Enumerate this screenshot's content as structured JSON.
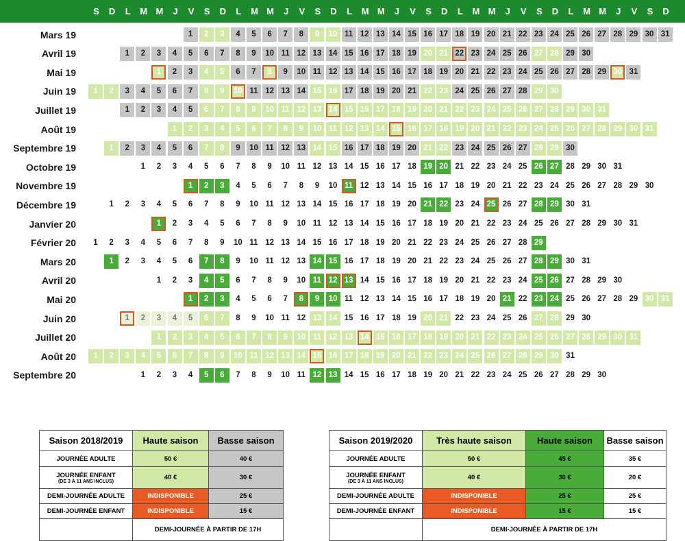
{
  "colors": {
    "header": "#1e8a2e",
    "grey": "#c6c6c6",
    "light_green": "#d2e8a6",
    "dark_green": "#4aac38",
    "orange": "#e95b25",
    "outline": "#d05a20"
  },
  "weekday_header": [
    "S",
    "D",
    "L",
    "M",
    "M",
    "J",
    "V",
    "S",
    "D",
    "L",
    "M",
    "M",
    "J",
    "V",
    "S",
    "D",
    "L",
    "M",
    "M",
    "J",
    "V",
    "S",
    "D",
    "L",
    "M",
    "M",
    "J",
    "V",
    "S",
    "D",
    "L",
    "M",
    "M",
    "J",
    "V",
    "S",
    "D"
  ],
  "months": [
    {
      "label": "Mars 19",
      "start": 6,
      "days": 31,
      "light": [
        [
          2,
          3
        ],
        [
          9,
          10
        ]
      ],
      "grey_until": 31,
      "outlined": []
    },
    {
      "label": "Avril 19",
      "start": 2,
      "days": 30,
      "light": [
        [
          20,
          21
        ],
        [
          27,
          28
        ]
      ],
      "grey_until": 30,
      "outlined": [
        22
      ]
    },
    {
      "label": "Mai 19",
      "start": 4,
      "days": 31,
      "light": [
        [
          1,
          1
        ],
        [
          4,
          5
        ],
        [
          8,
          8
        ],
        [
          30,
          30
        ]
      ],
      "grey_until": 31,
      "outlined": [
        1,
        8,
        30
      ]
    },
    {
      "label": "Juin 19",
      "start": 0,
      "days": 30,
      "light": [
        [
          1,
          2
        ],
        [
          8,
          10
        ],
        [
          15,
          16
        ],
        [
          22,
          23
        ],
        [
          29,
          30
        ]
      ],
      "grey_until": 30,
      "outlined": [
        10
      ]
    },
    {
      "label": "Juillet 19",
      "start": 2,
      "days": 31,
      "light": [
        [
          6,
          31
        ]
      ],
      "grey_until": 5,
      "outlined": [
        14
      ]
    },
    {
      "label": "Août 19",
      "start": 5,
      "days": 31,
      "light": [
        [
          1,
          31
        ]
      ],
      "grey_until": 0,
      "outlined": [
        15
      ]
    },
    {
      "label": "Septembre 19",
      "start": 1,
      "days": 30,
      "light": [
        [
          1,
          1
        ],
        [
          7,
          8
        ],
        [
          14,
          15
        ],
        [
          21,
          22
        ],
        [
          28,
          29
        ]
      ],
      "grey_until": 30,
      "outlined": []
    },
    {
      "label": "Octobre 19",
      "start": 3,
      "days": 31,
      "dark": [
        19,
        20,
        26,
        27
      ],
      "outlined": []
    },
    {
      "label": "Novembre 19",
      "start": 6,
      "days": 30,
      "dark": [
        1,
        2,
        3,
        11
      ],
      "outlined": [
        1,
        11
      ]
    },
    {
      "label": "Décembre 19",
      "start": 1,
      "days": 31,
      "dark": [
        21,
        22,
        25,
        28,
        29
      ],
      "outlined": [
        25
      ]
    },
    {
      "label": "Janvier  20",
      "start": 4,
      "days": 31,
      "dark": [
        1
      ],
      "outlined": [
        1
      ]
    },
    {
      "label": "Février 20",
      "start": 0,
      "days": 29,
      "dark": [
        29
      ],
      "outlined": []
    },
    {
      "label": "Mars 20",
      "start": 1,
      "days": 31,
      "dark": [
        1,
        7,
        8,
        14,
        15,
        28,
        29
      ],
      "outlined": []
    },
    {
      "label": "Avril 20",
      "start": 4,
      "days": 30,
      "dark": [
        4,
        5,
        11,
        12,
        13,
        25,
        26
      ],
      "outlined": [
        12,
        13
      ]
    },
    {
      "label": "Mai 20",
      "start": 6,
      "days": 31,
      "dark": [
        1,
        2,
        3,
        8,
        9,
        10,
        21,
        23,
        24
      ],
      "light": [
        [
          30,
          31
        ]
      ],
      "outlined": [
        1,
        8
      ]
    },
    {
      "label": "Juin 20",
      "start": 2,
      "days": 30,
      "light": [
        [
          6,
          7
        ],
        [
          13,
          14
        ],
        [
          20,
          21
        ],
        [
          27,
          28
        ]
      ],
      "paler": [
        [
          1,
          5
        ]
      ],
      "outlined": [
        1
      ]
    },
    {
      "label": "Juillet 20",
      "start": 4,
      "days": 31,
      "light": [
        [
          1,
          31
        ]
      ],
      "outlined": [
        14
      ]
    },
    {
      "label": "Août 20",
      "start": 0,
      "days": 31,
      "light": [
        [
          1,
          30
        ]
      ],
      "outlined": [
        15
      ]
    },
    {
      "label": "Septembre 20",
      "start": 3,
      "days": 30,
      "dark": [
        5,
        6,
        12,
        13
      ],
      "outlined": []
    }
  ],
  "table1": {
    "headers": [
      "Saison 2018/2019",
      "Haute saison",
      "Basse saison"
    ],
    "rows": [
      {
        "label": "JOURNÉE ADULTE",
        "sub": "",
        "values": [
          "50 €",
          "40 €"
        ]
      },
      {
        "label": "JOURNÉE ENFANT",
        "sub": "(DE 3 À 11 ANS INCLUS)",
        "values": [
          "40 €",
          "30 €"
        ]
      },
      {
        "label": "DEMI-JOURNÉE ADULTE",
        "sub": "",
        "values": [
          "INDISPONIBLE",
          "25 €"
        ]
      },
      {
        "label": "DEMI-JOURNÉE ENFANT",
        "sub": "",
        "values": [
          "INDISPONIBLE",
          "15 €"
        ]
      }
    ],
    "footer": "DEMI-JOURNÉE À PARTIR DE 17H"
  },
  "table2": {
    "headers": [
      "Saison 2019/2020",
      "Très haute saison",
      "Haute saison",
      "Basse saison"
    ],
    "rows": [
      {
        "label": "JOURNÉE ADULTE",
        "sub": "",
        "values": [
          "50 €",
          "45 €",
          "35 €"
        ]
      },
      {
        "label": "JOURNÉE ENFANT",
        "sub": "(DE 3 À 11 ANS INCLUS)",
        "values": [
          "40 €",
          "30 €",
          "20 €"
        ]
      },
      {
        "label": "DEMI-JOURNÉE ADULTE",
        "sub": "",
        "values": [
          "INDISPONIBLE",
          "25 €",
          "25 €"
        ]
      },
      {
        "label": "DEMI-JOURNÉE ENFANT",
        "sub": "",
        "values": [
          "INDISPONIBLE",
          "15 €",
          "15 €"
        ]
      }
    ],
    "footer": "DEMI-JOURNÉE À PARTIR DE 17H"
  }
}
